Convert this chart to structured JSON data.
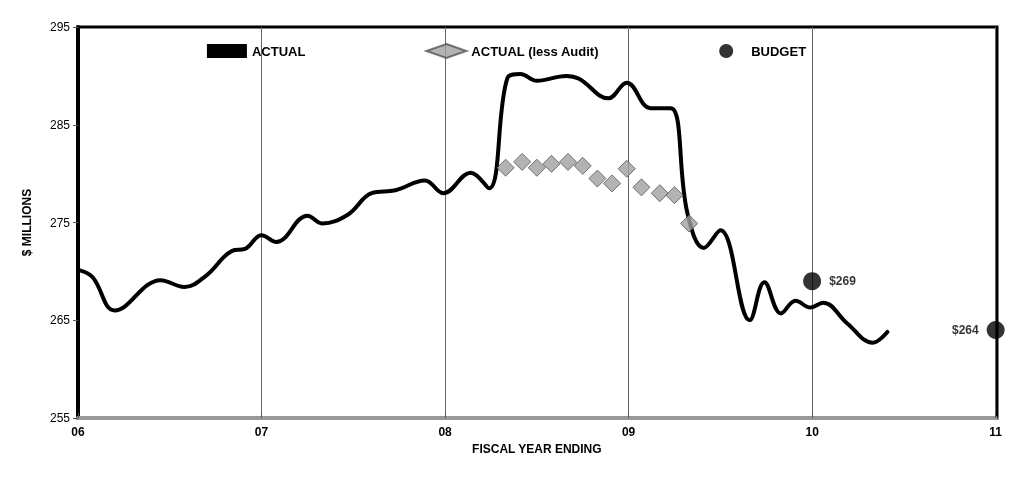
{
  "chart_data": {
    "type": "line",
    "xlabel": "FISCAL YEAR ENDING",
    "ylabel": "$ MILLIONS",
    "xlim": [
      6,
      11
    ],
    "xticks": [
      {
        "value": 6,
        "label": "06"
      },
      {
        "value": 7,
        "label": "07"
      },
      {
        "value": 8,
        "label": "08"
      },
      {
        "value": 9,
        "label": "09"
      },
      {
        "value": 10,
        "label": "10"
      },
      {
        "value": 11,
        "label": "11"
      }
    ],
    "ylim": [
      255,
      295
    ],
    "yticks": [
      255,
      265,
      275,
      285,
      295
    ],
    "grid": "x",
    "legend": "top",
    "series": [
      {
        "name": "ACTUAL",
        "color": "#000000",
        "marker": "none",
        "x": [
          6.01,
          6.08,
          6.2,
          6.45,
          6.58,
          6.7,
          6.84,
          6.91,
          7.0,
          7.08,
          7.25,
          7.33,
          7.47,
          7.6,
          7.73,
          7.89,
          7.99,
          8.14,
          8.24,
          8.34,
          8.41,
          8.5,
          8.66,
          8.73,
          8.89,
          8.99,
          9.12,
          9.23,
          9.32,
          9.41,
          9.5,
          9.66,
          9.74,
          9.83,
          9.91,
          9.99,
          10.06,
          10.19,
          10.33,
          10.41
        ],
        "values": [
          270.1,
          269.4,
          266.0,
          269.1,
          268.4,
          269.6,
          272.1,
          272.3,
          273.7,
          273.0,
          275.7,
          274.9,
          275.8,
          278.0,
          278.3,
          279.3,
          278.0,
          280.1,
          278.5,
          289.8,
          290.2,
          289.5,
          290.0,
          289.7,
          287.7,
          289.3,
          286.7,
          286.7,
          276.0,
          272.4,
          274.2,
          265.0,
          268.9,
          265.7,
          267.0,
          266.3,
          266.8,
          264.7,
          262.7,
          263.8
        ]
      },
      {
        "name": "ACTUAL (less Audit)",
        "type": "scatter",
        "color": "#a0a0a0",
        "marker": "diamond",
        "x": [
          8.33,
          8.42,
          8.5,
          8.58,
          8.67,
          8.75,
          8.83,
          8.91,
          8.99,
          9.07,
          9.17,
          9.25,
          9.33
        ],
        "values": [
          280.6,
          281.2,
          280.6,
          281.0,
          281.2,
          280.8,
          279.5,
          279.0,
          280.5,
          278.6,
          278.0,
          277.8,
          274.9
        ]
      },
      {
        "name": "BUDGET",
        "type": "scatter",
        "color": "#000000",
        "marker": "circle",
        "x": [
          10,
          11
        ],
        "values": [
          269,
          264
        ],
        "value_labels": [
          "$269",
          "$264"
        ]
      }
    ]
  }
}
